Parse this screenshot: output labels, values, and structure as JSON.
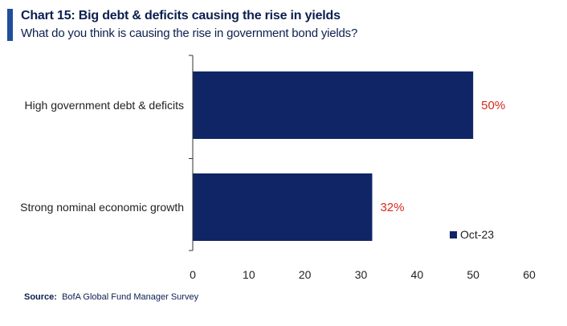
{
  "header": {
    "title": "Chart 15: Big debt & deficits causing the rise in yields",
    "subtitle": "What do you think is causing the rise in government bond yields?"
  },
  "footer": {
    "source_label": "Source:",
    "source_text": "BofA Global Fund Manager Survey"
  },
  "colors": {
    "bar": "#0f2565",
    "value_label": "#d7281d",
    "axis": "#333333",
    "accent": "#1f4e9c"
  },
  "chart_data": {
    "type": "bar",
    "orientation": "horizontal",
    "categories": [
      "High government debt & deficits",
      "Strong nominal economic growth"
    ],
    "series": [
      {
        "name": "Oct-23",
        "values": [
          50,
          32
        ]
      }
    ],
    "data_labels": [
      "50%",
      "32%"
    ],
    "xlim": [
      0,
      60
    ],
    "xticks": [
      0,
      10,
      20,
      30,
      40,
      50,
      60
    ],
    "grid": false,
    "legend_position": "bottom-right"
  }
}
